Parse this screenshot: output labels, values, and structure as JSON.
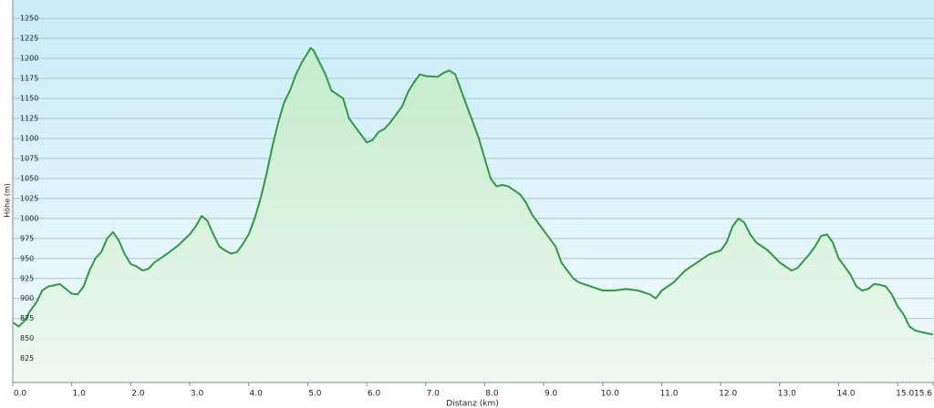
{
  "chart_data": {
    "type": "area",
    "xlabel": "Distanz (km)",
    "ylabel": "Höhe (m)",
    "x": [
      0.0,
      0.1,
      0.2,
      0.3,
      0.4,
      0.5,
      0.6,
      0.8,
      1.0,
      1.1,
      1.2,
      1.3,
      1.4,
      1.5,
      1.6,
      1.7,
      1.8,
      1.9,
      2.0,
      2.1,
      2.2,
      2.3,
      2.4,
      2.6,
      2.8,
      3.0,
      3.1,
      3.2,
      3.3,
      3.4,
      3.5,
      3.6,
      3.7,
      3.8,
      3.9,
      4.0,
      4.1,
      4.2,
      4.3,
      4.4,
      4.5,
      4.6,
      4.7,
      4.8,
      4.9,
      5.0,
      5.05,
      5.1,
      5.2,
      5.3,
      5.4,
      5.5,
      5.6,
      5.7,
      5.8,
      5.9,
      6.0,
      6.1,
      6.2,
      6.3,
      6.4,
      6.5,
      6.6,
      6.7,
      6.8,
      6.9,
      7.0,
      7.2,
      7.3,
      7.4,
      7.5,
      7.6,
      7.7,
      7.8,
      7.9,
      8.0,
      8.1,
      8.2,
      8.3,
      8.4,
      8.5,
      8.6,
      8.7,
      8.8,
      8.9,
      9.0,
      9.1,
      9.2,
      9.3,
      9.4,
      9.5,
      9.6,
      9.8,
      10.0,
      10.2,
      10.4,
      10.6,
      10.8,
      10.9,
      11.0,
      11.2,
      11.4,
      11.6,
      11.8,
      12.0,
      12.1,
      12.2,
      12.3,
      12.4,
      12.5,
      12.6,
      12.8,
      13.0,
      13.2,
      13.3,
      13.5,
      13.6,
      13.7,
      13.8,
      13.9,
      14.0,
      14.1,
      14.2,
      14.3,
      14.4,
      14.5,
      14.6,
      14.7,
      14.8,
      14.9,
      15.0,
      15.1,
      15.2,
      15.3,
      15.4,
      15.6
    ],
    "values": [
      870,
      865,
      872,
      885,
      895,
      910,
      915,
      918,
      906,
      905,
      915,
      935,
      950,
      958,
      975,
      983,
      972,
      955,
      943,
      940,
      935,
      937,
      945,
      955,
      966,
      980,
      990,
      1003,
      997,
      980,
      965,
      960,
      956,
      958,
      968,
      980,
      1000,
      1025,
      1055,
      1090,
      1120,
      1145,
      1160,
      1180,
      1195,
      1207,
      1213,
      1210,
      1195,
      1180,
      1160,
      1155,
      1150,
      1125,
      1115,
      1105,
      1095,
      1098,
      1108,
      1112,
      1120,
      1130,
      1140,
      1158,
      1170,
      1180,
      1178,
      1177,
      1182,
      1185,
      1180,
      1160,
      1140,
      1120,
      1100,
      1075,
      1050,
      1040,
      1042,
      1040,
      1035,
      1030,
      1020,
      1005,
      995,
      985,
      975,
      965,
      945,
      935,
      925,
      920,
      915,
      910,
      910,
      912,
      910,
      905,
      900,
      910,
      920,
      935,
      945,
      955,
      960,
      970,
      990,
      1000,
      995,
      980,
      970,
      960,
      945,
      935,
      938,
      955,
      965,
      978,
      980,
      970,
      950,
      940,
      930,
      915,
      910,
      912,
      918,
      917,
      915,
      905,
      890,
      880,
      865,
      860,
      858,
      855
    ],
    "color": "#2e9b3e",
    "fill_color": "#c9efce",
    "xlim": [
      0,
      15.6
    ],
    "ylim": [
      795,
      1273
    ],
    "xticks": [
      {
        "value": 0,
        "label": "0.0"
      },
      {
        "value": 1,
        "label": "1.0"
      },
      {
        "value": 2,
        "label": "2.0"
      },
      {
        "value": 3,
        "label": "3.0"
      },
      {
        "value": 4,
        "label": "4.0"
      },
      {
        "value": 5,
        "label": "5.0"
      },
      {
        "value": 6,
        "label": "6.0"
      },
      {
        "value": 7,
        "label": "7.0"
      },
      {
        "value": 8,
        "label": "8.0"
      },
      {
        "value": 9,
        "label": "9.0"
      },
      {
        "value": 10,
        "label": "10.0"
      },
      {
        "value": 11,
        "label": "11.0"
      },
      {
        "value": 12,
        "label": "12.0"
      },
      {
        "value": 13,
        "label": "13.0"
      },
      {
        "value": 14,
        "label": "14.0"
      },
      {
        "value": 15,
        "label": "15.0"
      },
      15.6
    ],
    "yticks": [
      825,
      850,
      875,
      900,
      925,
      950,
      975,
      1000,
      1025,
      1050,
      1075,
      1100,
      1125,
      1150,
      1175,
      1200,
      1225,
      1250
    ],
    "grid": true
  }
}
